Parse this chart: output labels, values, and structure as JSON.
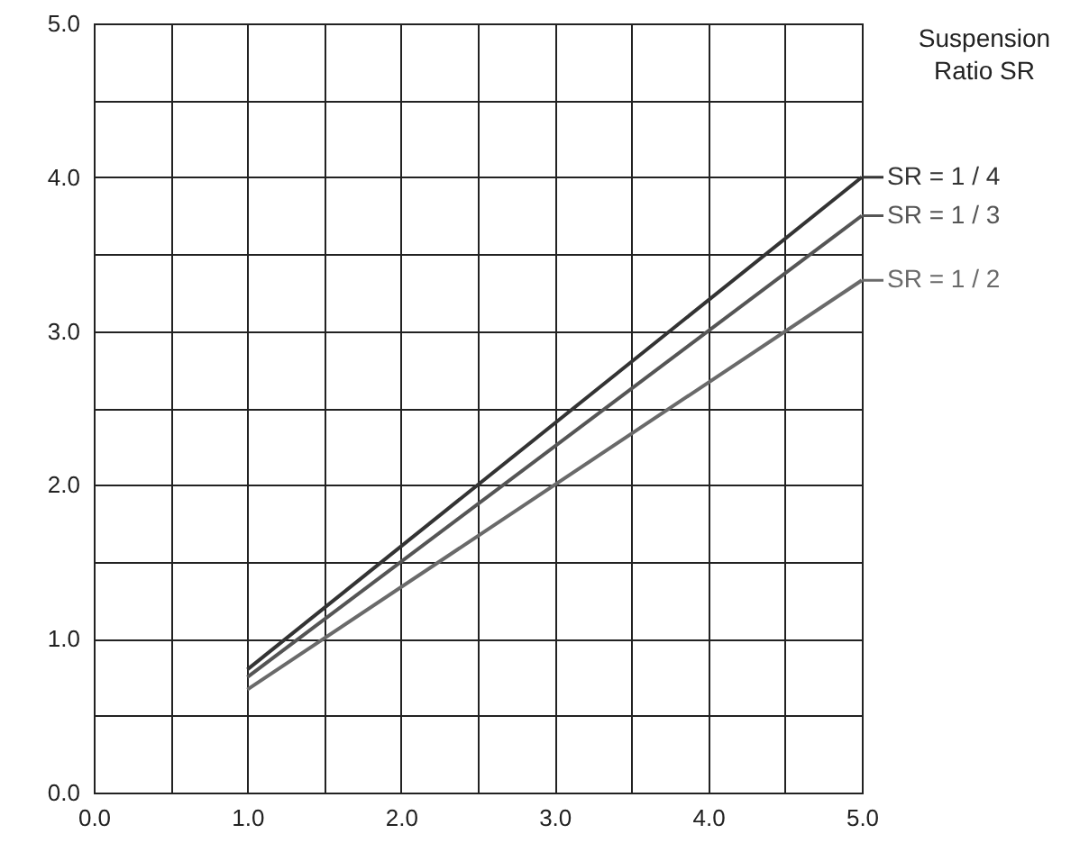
{
  "chart_data": {
    "type": "line",
    "legend_title": "Suspension Ratio SR",
    "x": [
      1,
      5
    ],
    "series": [
      {
        "name": "SR = 1 / 4",
        "color": "#333333",
        "values": [
          0.8,
          4.0
        ]
      },
      {
        "name": "SR = 1 / 3",
        "color": "#555555",
        "values": [
          0.75,
          3.75
        ]
      },
      {
        "name": "SR = 1 / 2",
        "color": "#6a6a6a",
        "values": [
          0.67,
          3.33
        ]
      }
    ],
    "xlim": [
      0,
      5
    ],
    "ylim": [
      0,
      5
    ],
    "xticks": [
      {
        "value": 0,
        "label": "0.0"
      },
      {
        "value": 0.5,
        "label": null
      },
      {
        "value": 1,
        "label": "1.0"
      },
      {
        "value": 1.5,
        "label": null
      },
      {
        "value": 2,
        "label": "2.0"
      },
      {
        "value": 2.5,
        "label": null
      },
      {
        "value": 3,
        "label": "3.0"
      },
      {
        "value": 3.5,
        "label": null
      },
      {
        "value": 4,
        "label": "4.0"
      },
      {
        "value": 4.5,
        "label": null
      },
      {
        "value": 5,
        "label": "5.0"
      }
    ],
    "yticks": [
      {
        "value": 0,
        "label": "0.0"
      },
      {
        "value": 0.5,
        "label": null
      },
      {
        "value": 1,
        "label": "1.0"
      },
      {
        "value": 1.5,
        "label": null
      },
      {
        "value": 2,
        "label": "2.0"
      },
      {
        "value": 2.5,
        "label": null
      },
      {
        "value": 3,
        "label": "3.0"
      },
      {
        "value": 3.5,
        "label": null
      },
      {
        "value": 4,
        "label": "4.0"
      },
      {
        "value": 4.5,
        "label": null
      },
      {
        "value": 5,
        "label": "5.0"
      }
    ],
    "grid": true,
    "legend": "right",
    "marker": "none",
    "line_style": "solid"
  }
}
